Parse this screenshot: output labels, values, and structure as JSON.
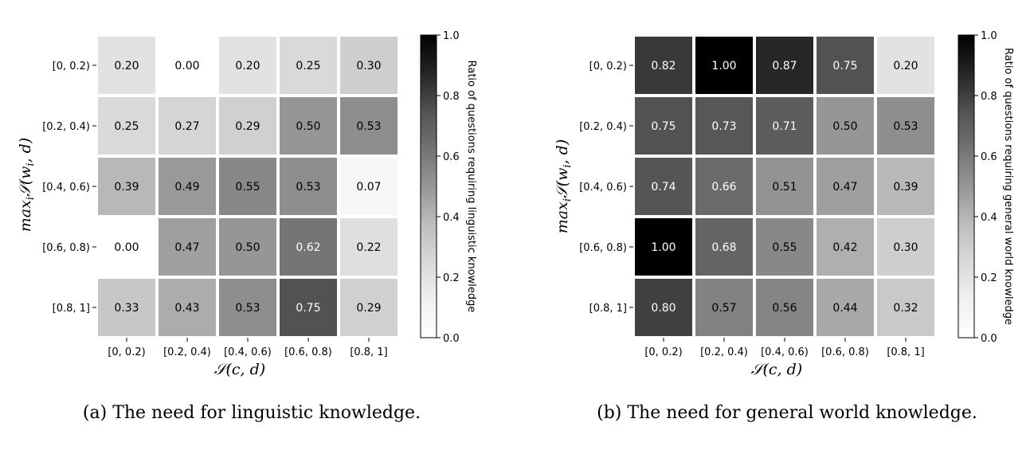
{
  "chart_data": [
    {
      "type": "heatmap",
      "caption": "(a) The need for linguistic knowledge.",
      "xlabel": "S(c, d)",
      "ylabel": "max_i S(w_i, d)",
      "x_categories": [
        "[0, 0.2)",
        "[0.2, 0.4)",
        "[0.4, 0.6)",
        "[0.6, 0.8)",
        "[0.8, 1]"
      ],
      "y_categories": [
        "[0, 0.2)",
        "[0.2, 0.4)",
        "[0.4, 0.6)",
        "[0.6, 0.8)",
        "[0.8, 1]"
      ],
      "values": [
        [
          0.2,
          0.0,
          0.2,
          0.25,
          0.3
        ],
        [
          0.25,
          0.27,
          0.29,
          0.5,
          0.53
        ],
        [
          0.39,
          0.49,
          0.55,
          0.53,
          0.07
        ],
        [
          0.0,
          0.47,
          0.5,
          0.62,
          0.22
        ],
        [
          0.33,
          0.43,
          0.53,
          0.75,
          0.29
        ]
      ],
      "display_values": [
        [
          "0.20",
          "0.00",
          "0.20",
          "0.25",
          "0.30"
        ],
        [
          "0.25",
          "0.27",
          "0.29",
          "0.50",
          "0.53"
        ],
        [
          "0.39",
          "0.49",
          "0.55",
          "0.53",
          "0.07"
        ],
        [
          "0.00",
          "0.47",
          "0.50",
          "0.62",
          "0.22"
        ],
        [
          "0.33",
          "0.43",
          "0.53",
          "0.75",
          "0.29"
        ]
      ],
      "colorbar": {
        "label": "Ratio of questions requiring linguistic knowledge",
        "range": [
          0.0,
          1.0
        ],
        "ticks": [
          "0.0",
          "0.2",
          "0.4",
          "0.6",
          "0.8",
          "1.0"
        ],
        "colormap": "Greys"
      }
    },
    {
      "type": "heatmap",
      "caption": "(b) The need for general world knowledge.",
      "xlabel": "S(c, d)",
      "ylabel": "max_i S(w_i, d)",
      "x_categories": [
        "[0, 0.2)",
        "[0.2, 0.4)",
        "[0.4, 0.6)",
        "[0.6, 0.8)",
        "[0.8, 1]"
      ],
      "y_categories": [
        "[0, 0.2)",
        "[0.2, 0.4)",
        "[0.4, 0.6)",
        "[0.6, 0.8)",
        "[0.8, 1]"
      ],
      "values": [
        [
          0.82,
          1.0,
          0.87,
          0.75,
          0.2
        ],
        [
          0.75,
          0.73,
          0.71,
          0.5,
          0.53
        ],
        [
          0.74,
          0.66,
          0.51,
          0.47,
          0.39
        ],
        [
          1.0,
          0.68,
          0.55,
          0.42,
          0.3
        ],
        [
          0.8,
          0.57,
          0.56,
          0.44,
          0.32
        ]
      ],
      "display_values": [
        [
          "0.82",
          "1.00",
          "0.87",
          "0.75",
          "0.20"
        ],
        [
          "0.75",
          "0.73",
          "0.71",
          "0.50",
          "0.53"
        ],
        [
          "0.74",
          "0.66",
          "0.51",
          "0.47",
          "0.39"
        ],
        [
          "1.00",
          "0.68",
          "0.55",
          "0.42",
          "0.30"
        ],
        [
          "0.80",
          "0.57",
          "0.56",
          "0.44",
          "0.32"
        ]
      ],
      "colorbar": {
        "label": "Ratio of questions requiring general world knowledge",
        "range": [
          0.0,
          1.0
        ],
        "ticks": [
          "0.0",
          "0.2",
          "0.4",
          "0.6",
          "0.8",
          "1.0"
        ],
        "colormap": "Greys"
      }
    }
  ]
}
